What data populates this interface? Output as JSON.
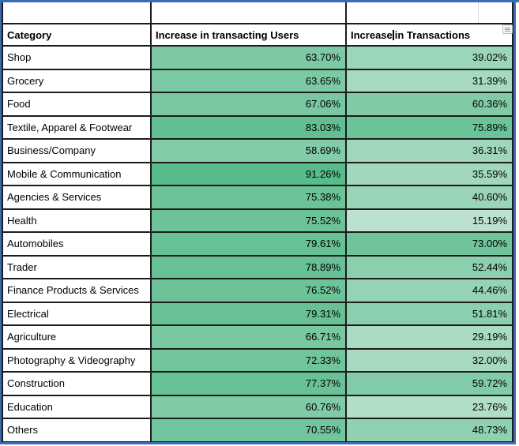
{
  "window": {
    "selection_border_color": "#3A6CB5",
    "grid_border_color": "#1C1C1C"
  },
  "conditional_format": {
    "type": "color-scale",
    "min_color": "#BCE2CF",
    "max_color": "#57BB8A"
  },
  "table": {
    "columns": [
      {
        "label": "Category"
      },
      {
        "label": "Increase in transacting Users"
      },
      {
        "label": "Increase in Transactions"
      }
    ],
    "header_caret": {
      "before": "Increase ",
      "after": "in Transactions"
    },
    "rows": [
      {
        "category": "Shop",
        "users": "63.70%",
        "users_color": "#7CC9A3",
        "transactions": "39.02%",
        "transactions_color": "#9CD6B9"
      },
      {
        "category": "Grocery",
        "users": "63.65%",
        "users_color": "#7CC9A3",
        "transactions": "31.39%",
        "transactions_color": "#A6DAC0"
      },
      {
        "category": "Food",
        "users": "67.06%",
        "users_color": "#77C7A0",
        "transactions": "60.36%",
        "transactions_color": "#80CBA6"
      },
      {
        "category": "Textile, Apparel & Footwear",
        "users": "83.03%",
        "users_color": "#62BF91",
        "transactions": "75.89%",
        "transactions_color": "#6BC398"
      },
      {
        "category": "Business/Company",
        "users": "58.69%",
        "users_color": "#82CCA8",
        "transactions": "36.31%",
        "transactions_color": "#A0D7BC"
      },
      {
        "category": "Mobile & Communication",
        "users": "91.26%",
        "users_color": "#57BB8A",
        "transactions": "35.59%",
        "transactions_color": "#A1D8BC"
      },
      {
        "category": "Agencies & Services",
        "users": "75.38%",
        "users_color": "#6CC398",
        "transactions": "40.60%",
        "transactions_color": "#9AD5B8"
      },
      {
        "category": "Health",
        "users": "75.52%",
        "users_color": "#6CC398",
        "transactions": "15.19%",
        "transactions_color": "#BCE2CF"
      },
      {
        "category": "Automobiles",
        "users": "79.61%",
        "users_color": "#66C194",
        "transactions": "73.00%",
        "transactions_color": "#6FC49B"
      },
      {
        "category": "Trader",
        "users": "78.89%",
        "users_color": "#67C195",
        "transactions": "52.44%",
        "transactions_color": "#8BCFAD"
      },
      {
        "category": "Finance Products & Services",
        "users": "76.52%",
        "users_color": "#6BC397",
        "transactions": "44.46%",
        "transactions_color": "#95D3B4"
      },
      {
        "category": "Electrical",
        "users": "79.31%",
        "users_color": "#67C195",
        "transactions": "51.81%",
        "transactions_color": "#8BCFAE"
      },
      {
        "category": "Agriculture",
        "users": "66.71%",
        "users_color": "#78C8A0",
        "transactions": "29.19%",
        "transactions_color": "#A9DBC2"
      },
      {
        "category": "Photography & Videography",
        "users": "72.33%",
        "users_color": "#70C59B",
        "transactions": "32.00%",
        "transactions_color": "#A6D9C0"
      },
      {
        "category": "Construction",
        "users": "77.37%",
        "users_color": "#69C296",
        "transactions": "59.72%",
        "transactions_color": "#81CBA7"
      },
      {
        "category": "Education",
        "users": "60.76%",
        "users_color": "#7FCBA6",
        "transactions": "23.76%",
        "transactions_color": "#B1DEC7"
      },
      {
        "category": "Others",
        "users": "70.55%",
        "users_color": "#72C69D",
        "transactions": "48.73%",
        "transactions_color": "#8FD1B1"
      }
    ]
  }
}
